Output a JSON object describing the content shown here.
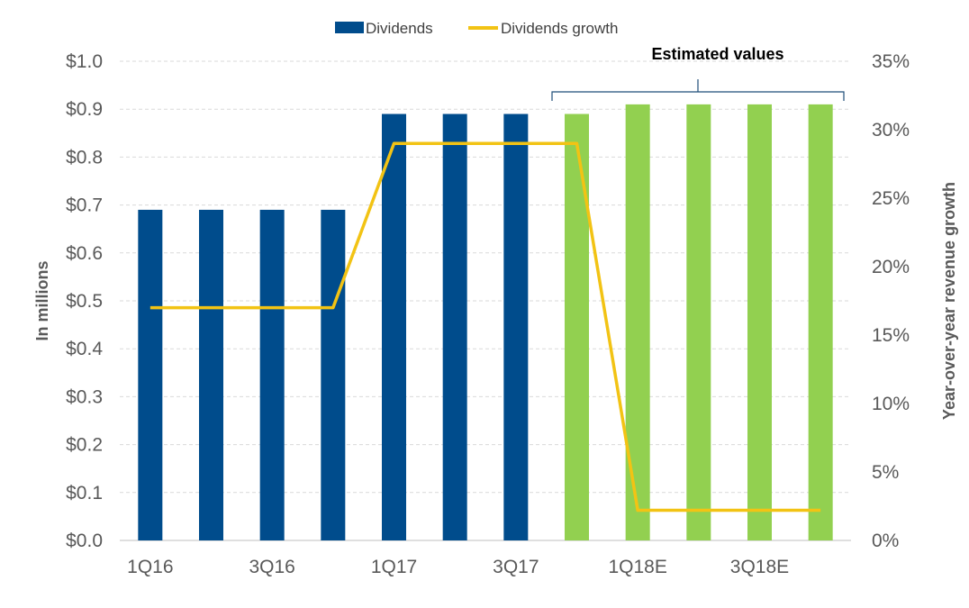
{
  "chart_data": {
    "type": "bar+line",
    "categories": [
      "1Q16",
      "",
      "3Q16",
      "",
      "1Q17",
      "",
      "3Q17",
      "",
      "1Q18E",
      "",
      "3Q18E",
      ""
    ],
    "series": [
      {
        "name": "Dividends",
        "type": "bar",
        "axis": "left",
        "values": [
          0.69,
          0.69,
          0.69,
          0.69,
          0.89,
          0.89,
          0.89,
          0.89,
          0.91,
          0.91,
          0.91,
          0.91
        ]
      },
      {
        "name": "Dividends growth",
        "type": "line",
        "axis": "right",
        "values": [
          17,
          17,
          17,
          17,
          29,
          29,
          29,
          29,
          2.2,
          2.2,
          2.2,
          2.2
        ]
      }
    ],
    "estimated_from_index": 7,
    "annotation": "Estimated values",
    "ylabel": "In millions",
    "y2label": "Year-over-year revenue growth",
    "ylim": [
      0,
      1.0
    ],
    "y2lim": [
      0,
      35
    ],
    "yticks": [
      "$0.0",
      "$0.1",
      "$0.2",
      "$0.3",
      "$0.4",
      "$0.5",
      "$0.6",
      "$0.7",
      "$0.8",
      "$0.9",
      "$1.0"
    ],
    "y2ticks": [
      "0%",
      "5%",
      "10%",
      "15%",
      "20%",
      "25%",
      "30%",
      "35%"
    ],
    "legend_position": "top",
    "grid": true,
    "colors": {
      "actual": "#004C8C",
      "estimated": "#92D050",
      "line": "#F2C314",
      "grid": "#D9D9D9",
      "bracket": "#1F4E79"
    }
  }
}
